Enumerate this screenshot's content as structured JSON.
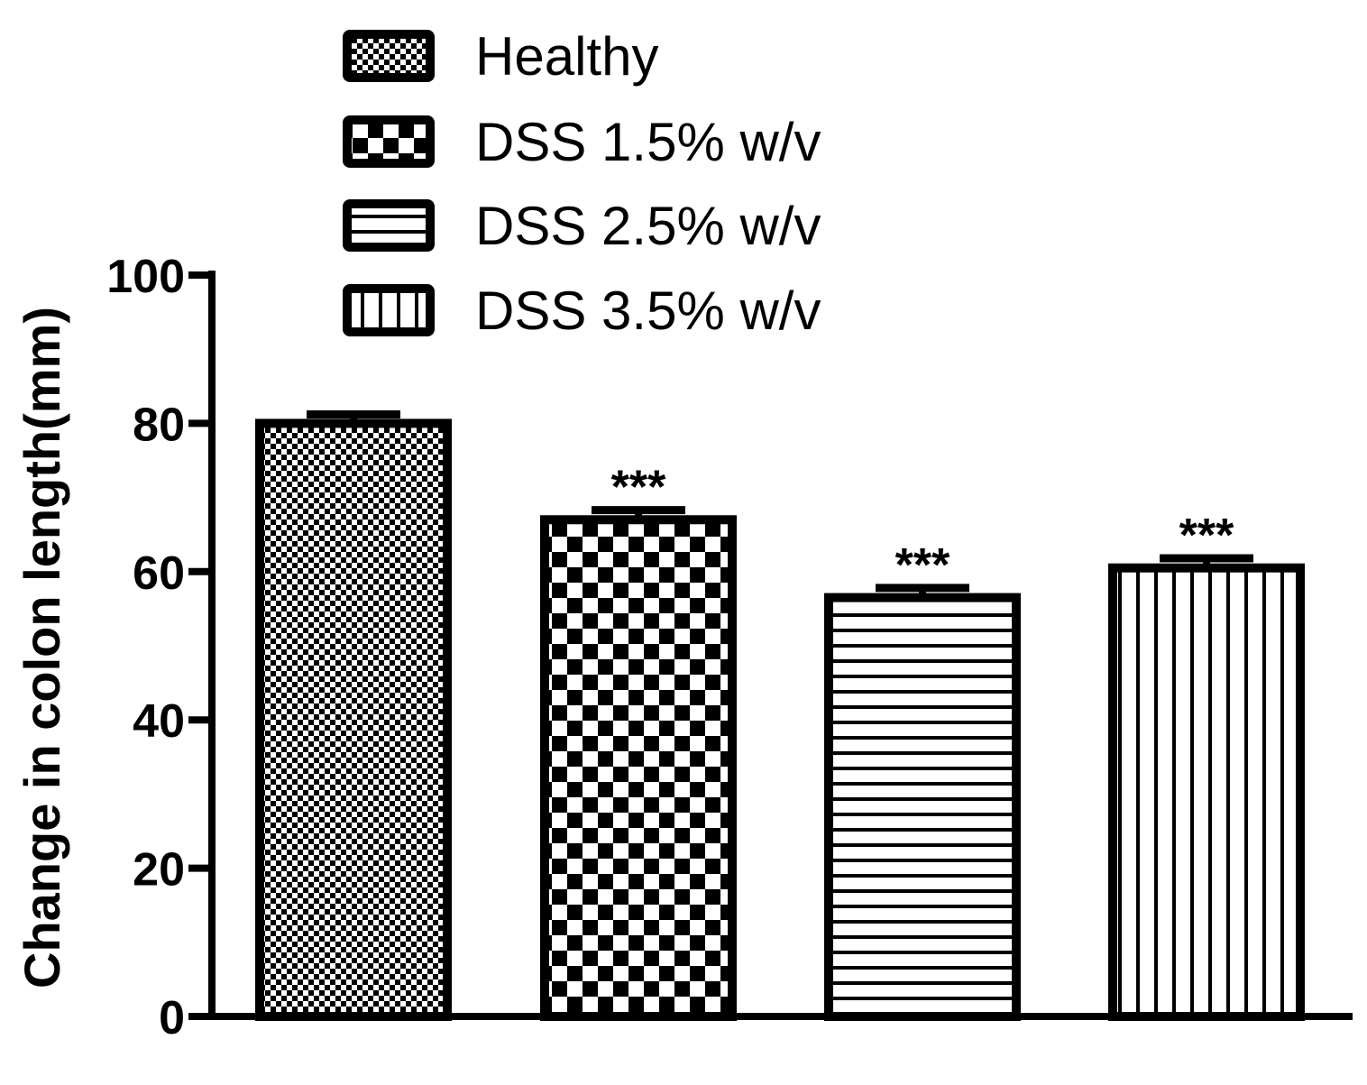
{
  "chart_data": {
    "type": "bar",
    "title": "",
    "xlabel": "",
    "ylabel": "Change in colon length(mm)",
    "ylim": [
      0,
      100
    ],
    "yticks": [
      0,
      20,
      40,
      60,
      80,
      100
    ],
    "ytick_labels": [
      "0",
      "20",
      "40",
      "60",
      "80",
      "100"
    ],
    "legend_position": "top",
    "categories": [
      "Healthy",
      "DSS 1.5% w/v",
      "DSS 2.5% w/v",
      "DSS 3.5% w/v"
    ],
    "values": [
      80,
      67,
      56.5,
      60.5
    ],
    "errors": [
      1.2,
      1.3,
      1.3,
      1.3
    ],
    "significance": [
      "",
      "***",
      "***",
      "***"
    ],
    "patterns": [
      "fine-checker",
      "checker",
      "horizontal-lines",
      "vertical-lines"
    ],
    "colors": {
      "ink": "#000000",
      "background": "#ffffff"
    }
  }
}
